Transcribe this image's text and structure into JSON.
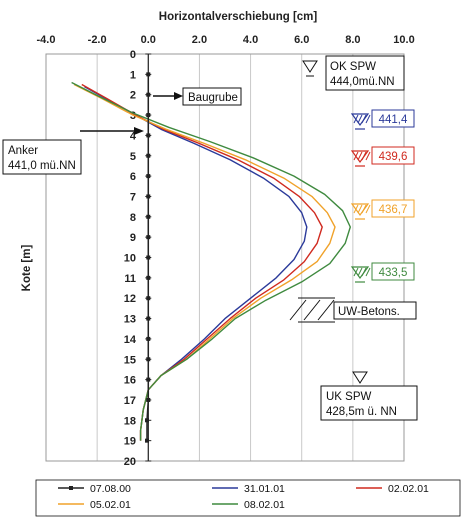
{
  "chart_data": {
    "type": "line",
    "title": "",
    "xlabel": "Horizontalverschiebung [cm]",
    "ylabel": "Kote [m]",
    "xlim": [
      -4.0,
      10.0
    ],
    "ylim": [
      0,
      20
    ],
    "x_ticks": [
      "-4.0",
      "-2.0",
      "0.0",
      "2.0",
      "4.0",
      "6.0",
      "8.0",
      "10.0"
    ],
    "y_ticks": [
      "0",
      "1",
      "2",
      "3",
      "4",
      "5",
      "6",
      "7",
      "8",
      "9",
      "10",
      "11",
      "12",
      "13",
      "14",
      "15",
      "16",
      "17",
      "18",
      "19",
      "20"
    ],
    "x_axis_position": "top",
    "y_axis_reversed": true,
    "grid": "vertical",
    "legend_position": "bottom",
    "series": [
      {
        "name": "07.08.00",
        "color": "#222222",
        "marker": "square",
        "points": [
          [
            0,
            1
          ],
          [
            0,
            2
          ],
          [
            0,
            3
          ],
          [
            0,
            4
          ],
          [
            0,
            5
          ],
          [
            0,
            6
          ],
          [
            0,
            7
          ],
          [
            0,
            8
          ],
          [
            0,
            9
          ],
          [
            0,
            10
          ],
          [
            0,
            11
          ],
          [
            0,
            12
          ],
          [
            0,
            13
          ],
          [
            0,
            14
          ],
          [
            0,
            15
          ],
          [
            0,
            16
          ],
          [
            0,
            17
          ],
          [
            -0.05,
            18
          ],
          [
            -0.05,
            19
          ]
        ]
      },
      {
        "name": "31.01.01",
        "color": "#2b3a9a",
        "points": [
          [
            -2.5,
            1.6
          ],
          [
            -1.5,
            2.3
          ],
          [
            -0.5,
            3.0
          ],
          [
            0.5,
            3.7
          ],
          [
            1.8,
            4.4
          ],
          [
            3.2,
            5.2
          ],
          [
            4.5,
            6.1
          ],
          [
            5.5,
            7.0
          ],
          [
            6.0,
            7.8
          ],
          [
            6.2,
            8.5
          ],
          [
            6.1,
            9.2
          ],
          [
            5.7,
            10.1
          ],
          [
            5.0,
            11.0
          ],
          [
            4.0,
            12.0
          ],
          [
            3.0,
            13.0
          ],
          [
            2.2,
            14.0
          ],
          [
            1.3,
            15.0
          ],
          [
            0.5,
            15.8
          ],
          [
            0.0,
            16.5
          ],
          [
            -0.2,
            17.5
          ],
          [
            -0.3,
            18.5
          ],
          [
            -0.3,
            19.0
          ]
        ]
      },
      {
        "name": "02.02.01",
        "color": "#d02a1f",
        "points": [
          [
            -2.6,
            1.5
          ],
          [
            -1.6,
            2.2
          ],
          [
            -0.5,
            3.0
          ],
          [
            0.6,
            3.7
          ],
          [
            2.0,
            4.4
          ],
          [
            3.5,
            5.2
          ],
          [
            4.9,
            6.1
          ],
          [
            5.9,
            7.0
          ],
          [
            6.5,
            7.8
          ],
          [
            6.8,
            8.5
          ],
          [
            6.6,
            9.3
          ],
          [
            6.1,
            10.2
          ],
          [
            5.3,
            11.1
          ],
          [
            4.2,
            12.0
          ],
          [
            3.2,
            13.0
          ],
          [
            2.3,
            14.0
          ],
          [
            1.4,
            15.0
          ],
          [
            0.5,
            15.8
          ],
          [
            0.0,
            16.5
          ],
          [
            -0.2,
            17.5
          ],
          [
            -0.3,
            18.5
          ],
          [
            -0.3,
            19.0
          ]
        ]
      },
      {
        "name": "05.02.01",
        "color": "#f0a22a",
        "points": [
          [
            -2.9,
            1.5
          ],
          [
            -1.8,
            2.2
          ],
          [
            -0.6,
            3.0
          ],
          [
            0.7,
            3.7
          ],
          [
            2.2,
            4.4
          ],
          [
            3.8,
            5.2
          ],
          [
            5.3,
            6.1
          ],
          [
            6.4,
            7.0
          ],
          [
            7.0,
            7.8
          ],
          [
            7.3,
            8.5
          ],
          [
            7.1,
            9.3
          ],
          [
            6.6,
            10.2
          ],
          [
            5.6,
            11.1
          ],
          [
            4.4,
            12.0
          ],
          [
            3.3,
            13.0
          ],
          [
            2.4,
            14.0
          ],
          [
            1.5,
            15.0
          ],
          [
            0.5,
            15.8
          ],
          [
            0.0,
            16.5
          ],
          [
            -0.2,
            17.5
          ],
          [
            -0.3,
            18.5
          ],
          [
            -0.3,
            19.0
          ]
        ]
      },
      {
        "name": "08.02.01",
        "color": "#3f8a3f",
        "points": [
          [
            -3.0,
            1.4
          ],
          [
            -1.9,
            2.1
          ],
          [
            -0.6,
            2.9
          ],
          [
            0.8,
            3.6
          ],
          [
            2.4,
            4.3
          ],
          [
            4.1,
            5.1
          ],
          [
            5.7,
            6.0
          ],
          [
            6.9,
            6.9
          ],
          [
            7.6,
            7.7
          ],
          [
            7.9,
            8.5
          ],
          [
            7.7,
            9.3
          ],
          [
            7.1,
            10.3
          ],
          [
            6.0,
            11.2
          ],
          [
            4.6,
            12.1
          ],
          [
            3.4,
            13.0
          ],
          [
            2.5,
            14.0
          ],
          [
            1.5,
            15.0
          ],
          [
            0.5,
            15.8
          ],
          [
            0.0,
            16.5
          ],
          [
            -0.2,
            17.5
          ],
          [
            -0.3,
            18.5
          ],
          [
            -0.3,
            19.0
          ]
        ]
      }
    ],
    "annotations": {
      "baugrube": "Baugrube",
      "anker_1": "Anker",
      "anker_2": "441,0 mü.NN",
      "ok_1": "OK SPW",
      "ok_2": "444,0mü.NN",
      "uw": "UW-Betons.",
      "uk_1": "UK SPW",
      "uk_2": "428,5m ü. NN"
    },
    "water_levels": [
      {
        "label": "441,4",
        "color": "#2b3a9a"
      },
      {
        "label": "439,6",
        "color": "#d02a1f"
      },
      {
        "label": "436,7",
        "color": "#f0a22a"
      },
      {
        "label": "433,5",
        "color": "#3f8a3f"
      }
    ]
  }
}
